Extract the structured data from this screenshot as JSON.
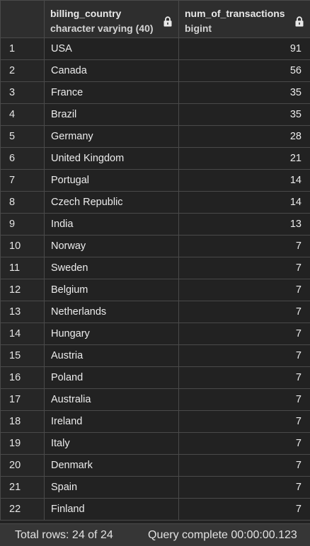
{
  "columns": [
    {
      "name": "billing_country",
      "type": "character varying (40)",
      "icon": "lock-icon"
    },
    {
      "name": "num_of_transactions",
      "type": "bigint",
      "icon": "lock-icon"
    }
  ],
  "rows": [
    {
      "n": "1",
      "country": "USA",
      "count": "91"
    },
    {
      "n": "2",
      "country": "Canada",
      "count": "56"
    },
    {
      "n": "3",
      "country": "France",
      "count": "35"
    },
    {
      "n": "4",
      "country": "Brazil",
      "count": "35"
    },
    {
      "n": "5",
      "country": "Germany",
      "count": "28"
    },
    {
      "n": "6",
      "country": "United Kingdom",
      "count": "21"
    },
    {
      "n": "7",
      "country": "Portugal",
      "count": "14"
    },
    {
      "n": "8",
      "country": "Czech Republic",
      "count": "14"
    },
    {
      "n": "9",
      "country": "India",
      "count": "13"
    },
    {
      "n": "10",
      "country": "Norway",
      "count": "7"
    },
    {
      "n": "11",
      "country": "Sweden",
      "count": "7"
    },
    {
      "n": "12",
      "country": "Belgium",
      "count": "7"
    },
    {
      "n": "13",
      "country": "Netherlands",
      "count": "7"
    },
    {
      "n": "14",
      "country": "Hungary",
      "count": "7"
    },
    {
      "n": "15",
      "country": "Austria",
      "count": "7"
    },
    {
      "n": "16",
      "country": "Poland",
      "count": "7"
    },
    {
      "n": "17",
      "country": "Australia",
      "count": "7"
    },
    {
      "n": "18",
      "country": "Ireland",
      "count": "7"
    },
    {
      "n": "19",
      "country": "Italy",
      "count": "7"
    },
    {
      "n": "20",
      "country": "Denmark",
      "count": "7"
    },
    {
      "n": "21",
      "country": "Spain",
      "count": "7"
    },
    {
      "n": "22",
      "country": "Finland",
      "count": "7"
    }
  ],
  "status": {
    "total_rows": "Total rows: 24 of 24",
    "query": "Query complete 00:00:00.123"
  }
}
